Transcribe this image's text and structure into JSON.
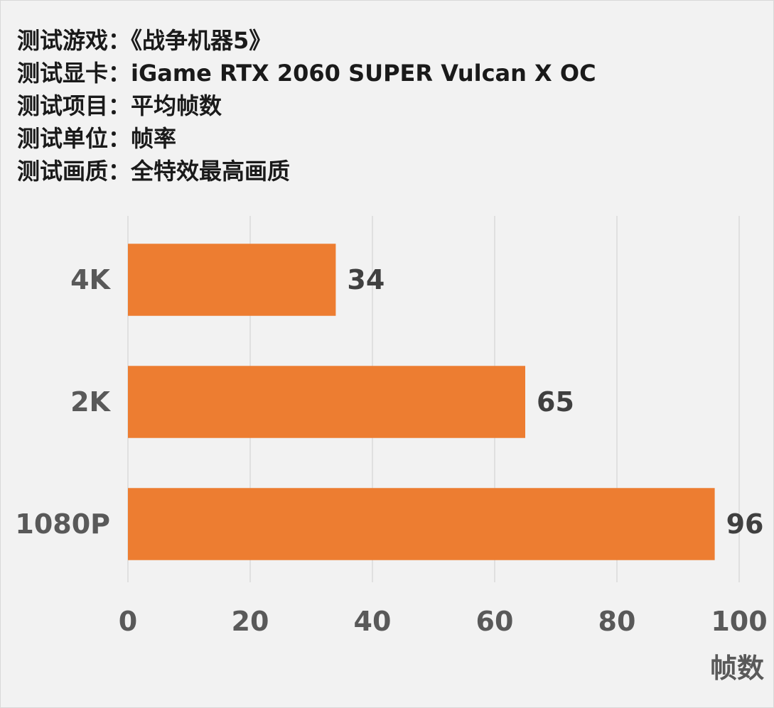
{
  "header": {
    "lines": [
      "测试游戏：《战争机器5》",
      "测试显卡：iGame RTX 2060 SUPER Vulcan X OC",
      "测试项目：平均帧数",
      "测试单位：帧率",
      "测试画质：全特效最高画质"
    ]
  },
  "colors": {
    "bar": "#ed7d31",
    "grid": "#d9d9d9",
    "background": "#f2f2f2"
  },
  "chart_data": {
    "type": "bar",
    "orientation": "horizontal",
    "categories": [
      "4K",
      "2K",
      "1080P"
    ],
    "values": [
      34,
      65,
      96
    ],
    "xlim": [
      0,
      100
    ],
    "xticks": [
      0,
      20,
      40,
      60,
      80,
      100
    ],
    "xlabel": "帧数",
    "grid": true,
    "legend": "none"
  }
}
